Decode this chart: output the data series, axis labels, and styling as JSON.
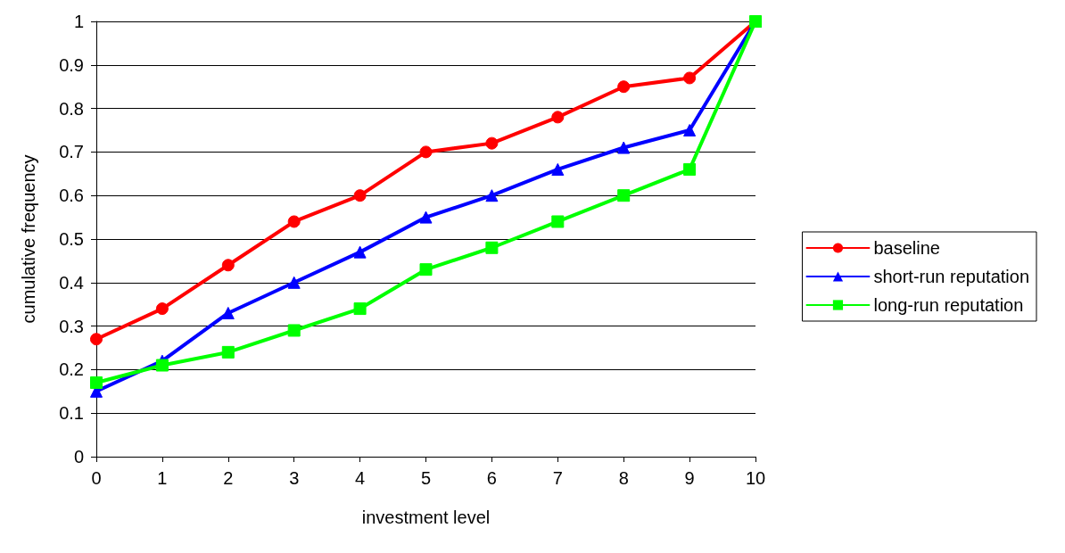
{
  "chart_data": {
    "type": "line",
    "xlabel": "investment level",
    "ylabel": "cumulative frequency",
    "x": [
      0,
      1,
      2,
      3,
      4,
      5,
      6,
      7,
      8,
      9,
      10
    ],
    "xlim": [
      0,
      10
    ],
    "xticks": [
      0,
      1,
      2,
      3,
      4,
      5,
      6,
      7,
      8,
      9,
      10
    ],
    "ylim": [
      0,
      1
    ],
    "yticks": [
      0,
      0.1,
      0.2,
      0.3,
      0.4,
      0.5,
      0.6,
      0.7,
      0.8,
      0.9,
      1
    ],
    "grid": "y",
    "legend": "right",
    "line_style": "solid",
    "series": [
      {
        "name": "baseline",
        "color": "#ff0000",
        "marker": "circle",
        "values": [
          0.27,
          0.34,
          0.44,
          0.54,
          0.6,
          0.7,
          0.72,
          0.78,
          0.85,
          0.87,
          1
        ]
      },
      {
        "name": "short-run reputation",
        "color": "#0000ff",
        "marker": "triangle",
        "values": [
          0.15,
          0.22,
          0.33,
          0.4,
          0.47,
          0.55,
          0.6,
          0.66,
          0.71,
          0.75,
          1
        ]
      },
      {
        "name": "long-run reputation",
        "color": "#00ff00",
        "marker": "square",
        "values": [
          0.17,
          0.21,
          0.24,
          0.29,
          0.34,
          0.43,
          0.48,
          0.54,
          0.6,
          0.66,
          1
        ]
      }
    ]
  }
}
